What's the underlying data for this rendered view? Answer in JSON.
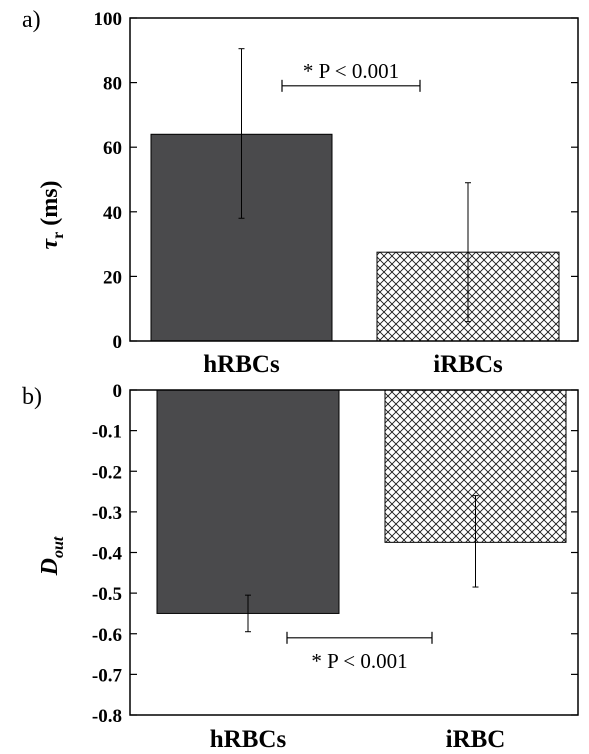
{
  "colors": {
    "solid_bar": "#4a4a4c",
    "hatch_line": "#1a1a1a",
    "axis": "#000000",
    "background": "#ffffff"
  },
  "chart_data": [
    {
      "panel_label": "a)",
      "type": "bar",
      "categories": [
        "hRBCs",
        "iRBCs"
      ],
      "values": [
        64,
        27.5
      ],
      "error_low": [
        38,
        6
      ],
      "error_high": [
        90.5,
        49
      ],
      "bar_styles": [
        "solid",
        "crosshatch"
      ],
      "ylabel": "τr (ms)",
      "ylabel_symbol": "τ",
      "ylabel_subscript": "r",
      "ylabel_unit": "(ms)",
      "ylim": [
        0,
        100
      ],
      "yticks": [
        0,
        20,
        40,
        60,
        80,
        100
      ],
      "ytick_labels": [
        "0",
        "20",
        "40",
        "60",
        "80",
        "100"
      ],
      "grid": false,
      "annotation": {
        "text": "* P < 0.001",
        "bracket_y": 79
      }
    },
    {
      "panel_label": "b)",
      "type": "bar",
      "categories": [
        "hRBCs",
        "iRBC"
      ],
      "values": [
        -0.55,
        -0.375
      ],
      "error_low": [
        -0.595,
        -0.485
      ],
      "error_high": [
        -0.505,
        -0.26
      ],
      "bar_styles": [
        "solid",
        "crosshatch"
      ],
      "ylabel": "Dout",
      "ylabel_main": "D",
      "ylabel_subscript": "out",
      "ylim": [
        -0.8,
        0
      ],
      "yticks": [
        0,
        -0.1,
        -0.2,
        -0.3,
        -0.4,
        -0.5,
        -0.6,
        -0.7,
        -0.8
      ],
      "ytick_labels": [
        "0",
        "-0.1",
        "-0.2",
        "-0.3",
        "-0.4",
        "-0.5",
        "-0.6",
        "-0.7",
        "-0.8"
      ],
      "grid": false,
      "annotation": {
        "text": "* P < 0.001",
        "bracket_y": -0.61
      }
    }
  ]
}
